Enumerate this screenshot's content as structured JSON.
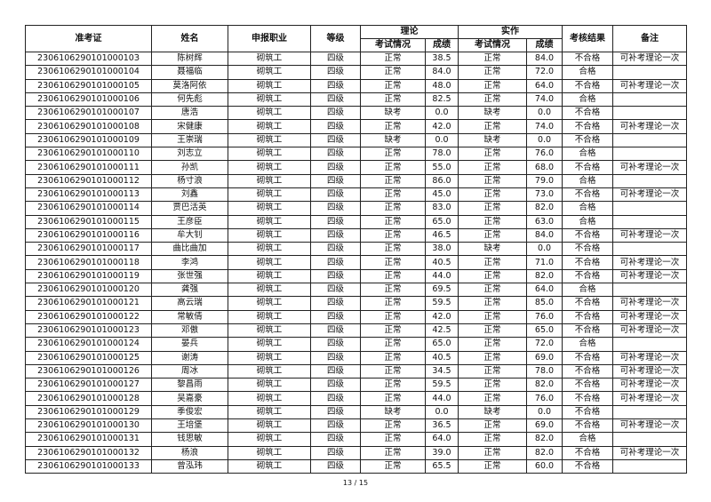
{
  "header": {
    "id": "准考证",
    "name": "姓名",
    "job": "申报职业",
    "level": "等级",
    "theory": "理论",
    "practice": "实作",
    "status": "考试情况",
    "score": "成绩",
    "result": "考核结果",
    "remark": "备注"
  },
  "rows": [
    [
      "230610629010100010З",
      "陈树辉",
      "砌筑工",
      "四级",
      "正常",
      "38.5",
      "正常",
      "84.0",
      "不合格",
      "可补考理论一次"
    ],
    [
      "2306106290101000104",
      "聂福临",
      "砌筑工",
      "四级",
      "正常",
      "84.0",
      "正常",
      "72.0",
      "合格",
      ""
    ],
    [
      "2306106290101000105",
      "莫洛阿依",
      "砌筑工",
      "四级",
      "正常",
      "48.0",
      "正常",
      "64.0",
      "不合格",
      "可补考理论一次"
    ],
    [
      "2306106290101000106",
      "何先彪",
      "砌筑工",
      "四级",
      "正常",
      "82.5",
      "正常",
      "74.0",
      "合格",
      ""
    ],
    [
      "2306106290101000107",
      "唐浩",
      "砌筑工",
      "四级",
      "缺考",
      "0.0",
      "缺考",
      "0.0",
      "不合格",
      ""
    ],
    [
      "2306106290101000108",
      "宋健康",
      "砌筑工",
      "四级",
      "正常",
      "42.0",
      "正常",
      "74.0",
      "不合格",
      "可补考理论一次"
    ],
    [
      "2306106290101000109",
      "王崇瑞",
      "砌筑工",
      "四级",
      "缺考",
      "0.0",
      "缺考",
      "0.0",
      "不合格",
      ""
    ],
    [
      "2306106290101000110",
      "刘志立",
      "砌筑工",
      "四级",
      "正常",
      "78.0",
      "正常",
      "76.0",
      "合格",
      ""
    ],
    [
      "2306106290101000111",
      "孙凯",
      "砌筑工",
      "四级",
      "正常",
      "55.0",
      "正常",
      "68.0",
      "不合格",
      "可补考理论一次"
    ],
    [
      "2306106290101000112",
      "杨寸浪",
      "砌筑工",
      "四级",
      "正常",
      "86.0",
      "正常",
      "79.0",
      "合格",
      ""
    ],
    [
      "2306106290101000113",
      "刘鑫",
      "砌筑工",
      "四级",
      "正常",
      "45.0",
      "正常",
      "73.0",
      "不合格",
      "可补考理论一次"
    ],
    [
      "2306106290101000114",
      "贾巴活英",
      "砌筑工",
      "四级",
      "正常",
      "83.0",
      "正常",
      "82.0",
      "合格",
      ""
    ],
    [
      "2306106290101000115",
      "王彦臣",
      "砌筑工",
      "四级",
      "正常",
      "65.0",
      "正常",
      "63.0",
      "合格",
      ""
    ],
    [
      "2306106290101000116",
      "牟大钊",
      "砌筑工",
      "四级",
      "正常",
      "46.5",
      "正常",
      "84.0",
      "不合格",
      "可补考理论一次"
    ],
    [
      "2306106290101000117",
      "曲比曲加",
      "砌筑工",
      "四级",
      "正常",
      "38.0",
      "缺考",
      "0.0",
      "不合格",
      ""
    ],
    [
      "2306106290101000118",
      "李鸿",
      "砌筑工",
      "四级",
      "正常",
      "40.5",
      "正常",
      "71.0",
      "不合格",
      "可补考理论一次"
    ],
    [
      "2306106290101000119",
      "张世强",
      "砌筑工",
      "四级",
      "正常",
      "44.0",
      "正常",
      "82.0",
      "不合格",
      "可补考理论一次"
    ],
    [
      "2306106290101000120",
      "龚强",
      "砌筑工",
      "四级",
      "正常",
      "69.5",
      "正常",
      "64.0",
      "合格",
      ""
    ],
    [
      "2306106290101000121",
      "高云瑞",
      "砌筑工",
      "四级",
      "正常",
      "59.5",
      "正常",
      "85.0",
      "不合格",
      "可补考理论一次"
    ],
    [
      "2306106290101000122",
      "常敏倩",
      "砌筑工",
      "四级",
      "正常",
      "42.0",
      "正常",
      "76.0",
      "不合格",
      "可补考理论一次"
    ],
    [
      "2306106290101000123",
      "邓傲",
      "砌筑工",
      "四级",
      "正常",
      "42.5",
      "正常",
      "65.0",
      "不合格",
      "可补考理论一次"
    ],
    [
      "2306106290101000124",
      "晏兵",
      "砌筑工",
      "四级",
      "正常",
      "65.0",
      "正常",
      "72.0",
      "合格",
      ""
    ],
    [
      "2306106290101000125",
      "谢涛",
      "砌筑工",
      "四级",
      "正常",
      "40.5",
      "正常",
      "69.0",
      "不合格",
      "可补考理论一次"
    ],
    [
      "2306106290101000126",
      "周冰",
      "砌筑工",
      "四级",
      "正常",
      "34.5",
      "正常",
      "78.0",
      "不合格",
      "可补考理论一次"
    ],
    [
      "2306106290101000127",
      "黎昌雨",
      "砌筑工",
      "四级",
      "正常",
      "59.5",
      "正常",
      "82.0",
      "不合格",
      "可补考理论一次"
    ],
    [
      "2306106290101000128",
      "吴嘉豪",
      "砌筑工",
      "四级",
      "正常",
      "44.0",
      "正常",
      "76.0",
      "不合格",
      "可补考理论一次"
    ],
    [
      "2306106290101000129",
      "季俊宏",
      "砌筑工",
      "四级",
      "缺考",
      "0.0",
      "缺考",
      "0.0",
      "不合格",
      ""
    ],
    [
      "2306106290101000130",
      "王培堡",
      "砌筑工",
      "四级",
      "正常",
      "36.5",
      "正常",
      "69.0",
      "不合格",
      "可补考理论一次"
    ],
    [
      "2306106290101000131",
      "钱思敏",
      "砌筑工",
      "四级",
      "正常",
      "64.0",
      "正常",
      "82.0",
      "合格",
      ""
    ],
    [
      "2306106290101000132",
      "杨浪",
      "砌筑工",
      "四级",
      "正常",
      "39.0",
      "正常",
      "82.0",
      "不合格",
      "可补考理论一次"
    ],
    [
      "2306106290101000133",
      "曾泓玮",
      "砌筑工",
      "四级",
      "正常",
      "65.5",
      "正常",
      "60.0",
      "不合格",
      ""
    ]
  ],
  "footer": {
    "page": "13 / 15"
  }
}
